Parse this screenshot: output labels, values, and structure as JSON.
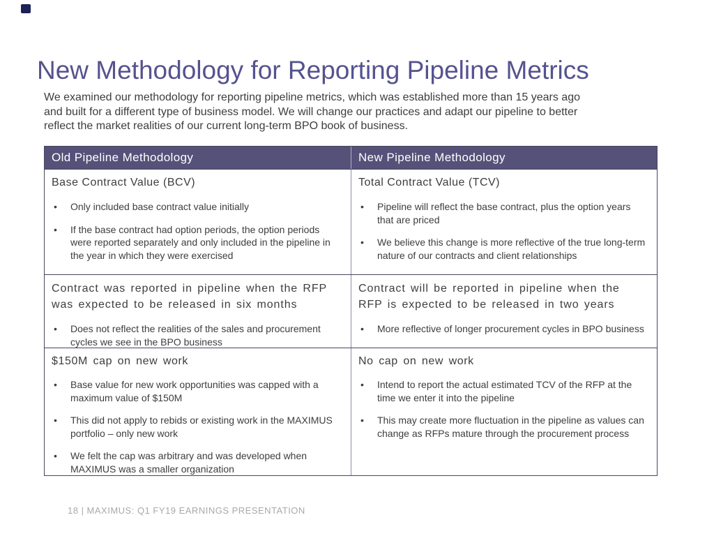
{
  "slide": {
    "title": "New Methodology for Reporting Pipeline Metrics",
    "intro_lines": [
      "We examined our methodology for reporting pipeline metrics, which was established more than 15 years ago",
      "and built for a different type of business model. We will change our practices and adapt our pipeline to better",
      "reflect the market realities of our current long-term BPO book of business."
    ],
    "footer": "18 | MAXIMUS: Q1 FY19 EARNINGS PRESENTATION"
  },
  "glyphs": {
    "bullet": "•"
  },
  "colors": {
    "title": "#54538f",
    "header_bg": "#555179",
    "header_text": "#ffffff",
    "body_text": "#3d3d3d",
    "border_dark": "#46465f",
    "border_column": "#8c8caa",
    "footer_text": "#a9a9a9",
    "corner_square": "#1c2157"
  },
  "table": {
    "headers": [
      "Old Pipeline Methodology",
      "New Pipeline Methodology"
    ],
    "rows": [
      {
        "old": {
          "heading": "Base Contract Value (BCV)",
          "bullets": [
            "Only included base contract value initially",
            "If the base contract had option periods, the option periods were reported separately and only included in the pipeline in the year in which they were exercised"
          ]
        },
        "new": {
          "heading": "Total Contract Value (TCV)",
          "bullets": [
            "Pipeline will reflect the base contract, plus the option years that are priced",
            "We believe this change is more reflective of the true long-term nature of our contracts and client relationships"
          ]
        }
      },
      {
        "old": {
          "heading": "Contract was reported in pipeline when the RFP was expected to be released in six months",
          "bullets": [
            "Does not reflect the realities of the sales and procurement cycles we see in the BPO business"
          ]
        },
        "new": {
          "heading": "Contract will be reported in pipeline when the RFP is expected to be released in two years",
          "bullets": [
            "More reflective of longer procurement cycles in BPO business"
          ]
        }
      },
      {
        "old": {
          "heading": "$150M cap on new work",
          "bullets": [
            "Base value for new work opportunities was capped with a maximum value of $150M",
            "This did not apply to rebids or existing work in the MAXIMUS portfolio – only new work",
            "We felt the cap was arbitrary and was developed when MAXIMUS was a smaller organization"
          ]
        },
        "new": {
          "heading": "No cap on new work",
          "bullets": [
            "Intend to report the actual estimated TCV of the RFP at the time we enter it into the pipeline",
            "This may create more fluctuation in the pipeline as values can change as RFPs mature through the procurement process"
          ]
        }
      }
    ]
  }
}
